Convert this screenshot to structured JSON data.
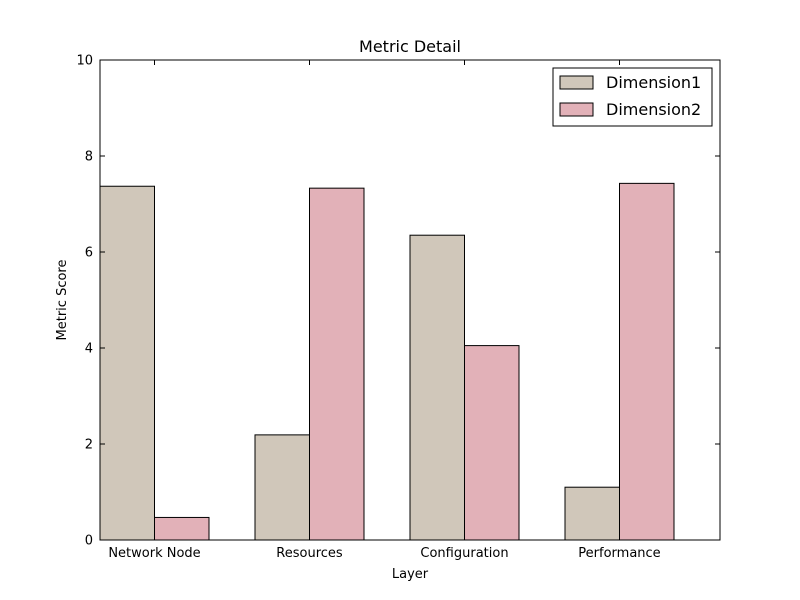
{
  "chart_data": {
    "type": "bar",
    "title": "Metric Detail",
    "xlabel": "Layer",
    "ylabel": "Metric Score",
    "categories": [
      "Network Node",
      "Resources",
      "Configuration",
      "Performance"
    ],
    "series": [
      {
        "name": "Dimension1",
        "values": [
          7.37,
          2.19,
          6.35,
          1.1
        ],
        "color": "#d0c7ba"
      },
      {
        "name": "Dimension2",
        "values": [
          0.47,
          7.33,
          4.05,
          7.43
        ],
        "color": "#e2b1b8"
      }
    ],
    "ylim": [
      0,
      10
    ],
    "yticks": [
      0,
      2,
      4,
      6,
      8,
      10
    ],
    "grid": false,
    "legend_position": "top-right"
  }
}
